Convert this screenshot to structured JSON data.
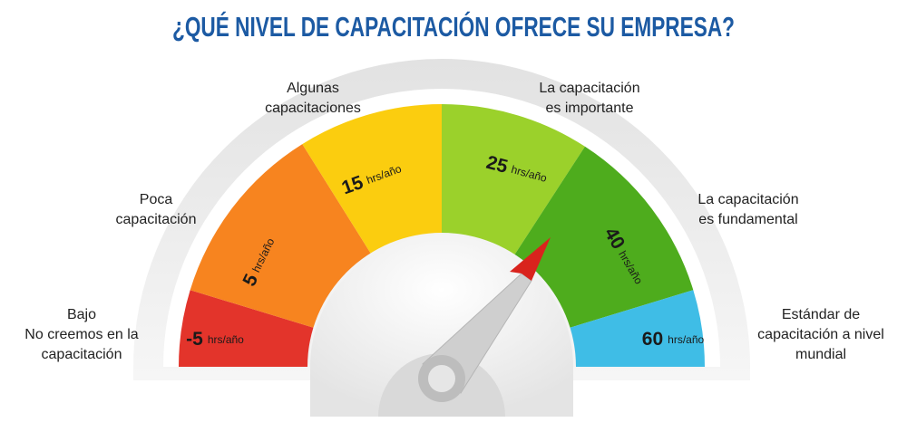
{
  "title": "¿QUÉ NIVEL DE CAPACITACIÓN OFRECE SU EMPRESA?",
  "segments": [
    {
      "value": "-5",
      "unit": "hrs/año",
      "label": [
        "Bajo",
        "No creemos en la",
        "capacitación"
      ]
    },
    {
      "value": "5",
      "unit": "hrs/año",
      "label": [
        "Poca",
        "capacitación"
      ]
    },
    {
      "value": "15",
      "unit": "hrs/año",
      "label": [
        "Algunas",
        "capacitaciones"
      ]
    },
    {
      "value": "25",
      "unit": "hrs/año",
      "label": [
        "La capacitación",
        "es importante"
      ]
    },
    {
      "value": "40",
      "unit": "hrs/año",
      "label": [
        "La capacitación",
        "es fundamental"
      ]
    },
    {
      "value": "60",
      "unit": "hrs/año",
      "label": [
        "Estándar de",
        "capacitación a nivel",
        "mundial"
      ]
    }
  ]
}
